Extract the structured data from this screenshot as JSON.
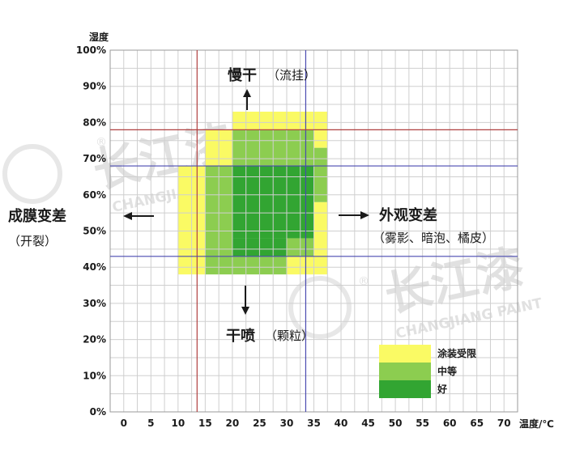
{
  "chart_data": {
    "type": "heatmap",
    "xlabel": "温度/℃",
    "ylabel": "湿度",
    "x_ticks": [
      "0",
      "5",
      "10",
      "15",
      "20",
      "25",
      "30",
      "35",
      "40",
      "45",
      "50",
      "55",
      "60",
      "65",
      "70"
    ],
    "y_ticks": [
      "0%",
      "10%",
      "20%",
      "30%",
      "40%",
      "50%",
      "60%",
      "70%",
      "80%",
      "90%",
      "100%"
    ],
    "xlim": [
      -2.5,
      72.5
    ],
    "ylim": [
      0,
      100
    ],
    "cell_size": {
      "temperature": 2.5,
      "humidity": 5
    },
    "reference_lines": {
      "vertical": [
        13.5,
        33.5
      ],
      "horizontal": [
        43,
        68,
        78
      ]
    },
    "legend": [
      {
        "name": "涂装受限",
        "color": "#fafa64"
      },
      {
        "name": "中等",
        "color": "#8ccd50"
      },
      {
        "name": "好",
        "color": "#32a532"
      }
    ],
    "regions": [
      {
        "level": "涂装受限",
        "temp": [
          20,
          32.5
        ],
        "rh": [
          78,
          83
        ]
      },
      {
        "level": "涂装受限",
        "temp": [
          32.5,
          37.5
        ],
        "rh": [
          73,
          83
        ]
      },
      {
        "level": "涂装受限",
        "temp": [
          10,
          15
        ],
        "rh": [
          38,
          68
        ]
      },
      {
        "level": "涂装受限",
        "temp": [
          15,
          20
        ],
        "rh": [
          68,
          78
        ]
      },
      {
        "level": "涂装受限",
        "temp": [
          35,
          37.5
        ],
        "rh": [
          38,
          58
        ]
      },
      {
        "level": "涂装受限",
        "temp": [
          30,
          35
        ],
        "rh": [
          38,
          43
        ]
      },
      {
        "level": "中等",
        "temp": [
          20,
          35
        ],
        "rh": [
          68,
          78
        ]
      },
      {
        "level": "中等",
        "temp": [
          15,
          20
        ],
        "rh": [
          38,
          68
        ]
      },
      {
        "level": "中等",
        "temp": [
          35,
          37.5
        ],
        "rh": [
          58,
          73
        ]
      },
      {
        "level": "中等",
        "temp": [
          20,
          30
        ],
        "rh": [
          38,
          43
        ]
      },
      {
        "level": "中等",
        "temp": [
          30,
          35
        ],
        "rh": [
          43,
          48
        ]
      },
      {
        "level": "好",
        "temp": [
          20,
          35
        ],
        "rh": [
          48,
          68
        ]
      },
      {
        "level": "好",
        "temp": [
          20,
          30
        ],
        "rh": [
          43,
          48
        ]
      }
    ],
    "annotations": {
      "top": {
        "main": "慢干",
        "sub": "（流挂）"
      },
      "bottom": {
        "main": "干喷",
        "sub": "（颗粒）"
      },
      "left": {
        "main": "成膜变差",
        "sub": "（开裂）"
      },
      "right": {
        "main": "外观变差",
        "sub": "（雾影、暗泡、橘皮）"
      }
    }
  },
  "colors": {
    "grid": "#cfcfcf",
    "ref_red": "#b04040",
    "ref_blue": "#4a4ab0"
  },
  "watermark": {
    "brand": "长江漆",
    "brand_en": "CHANGJIANG PAINT",
    "mark": "®"
  }
}
